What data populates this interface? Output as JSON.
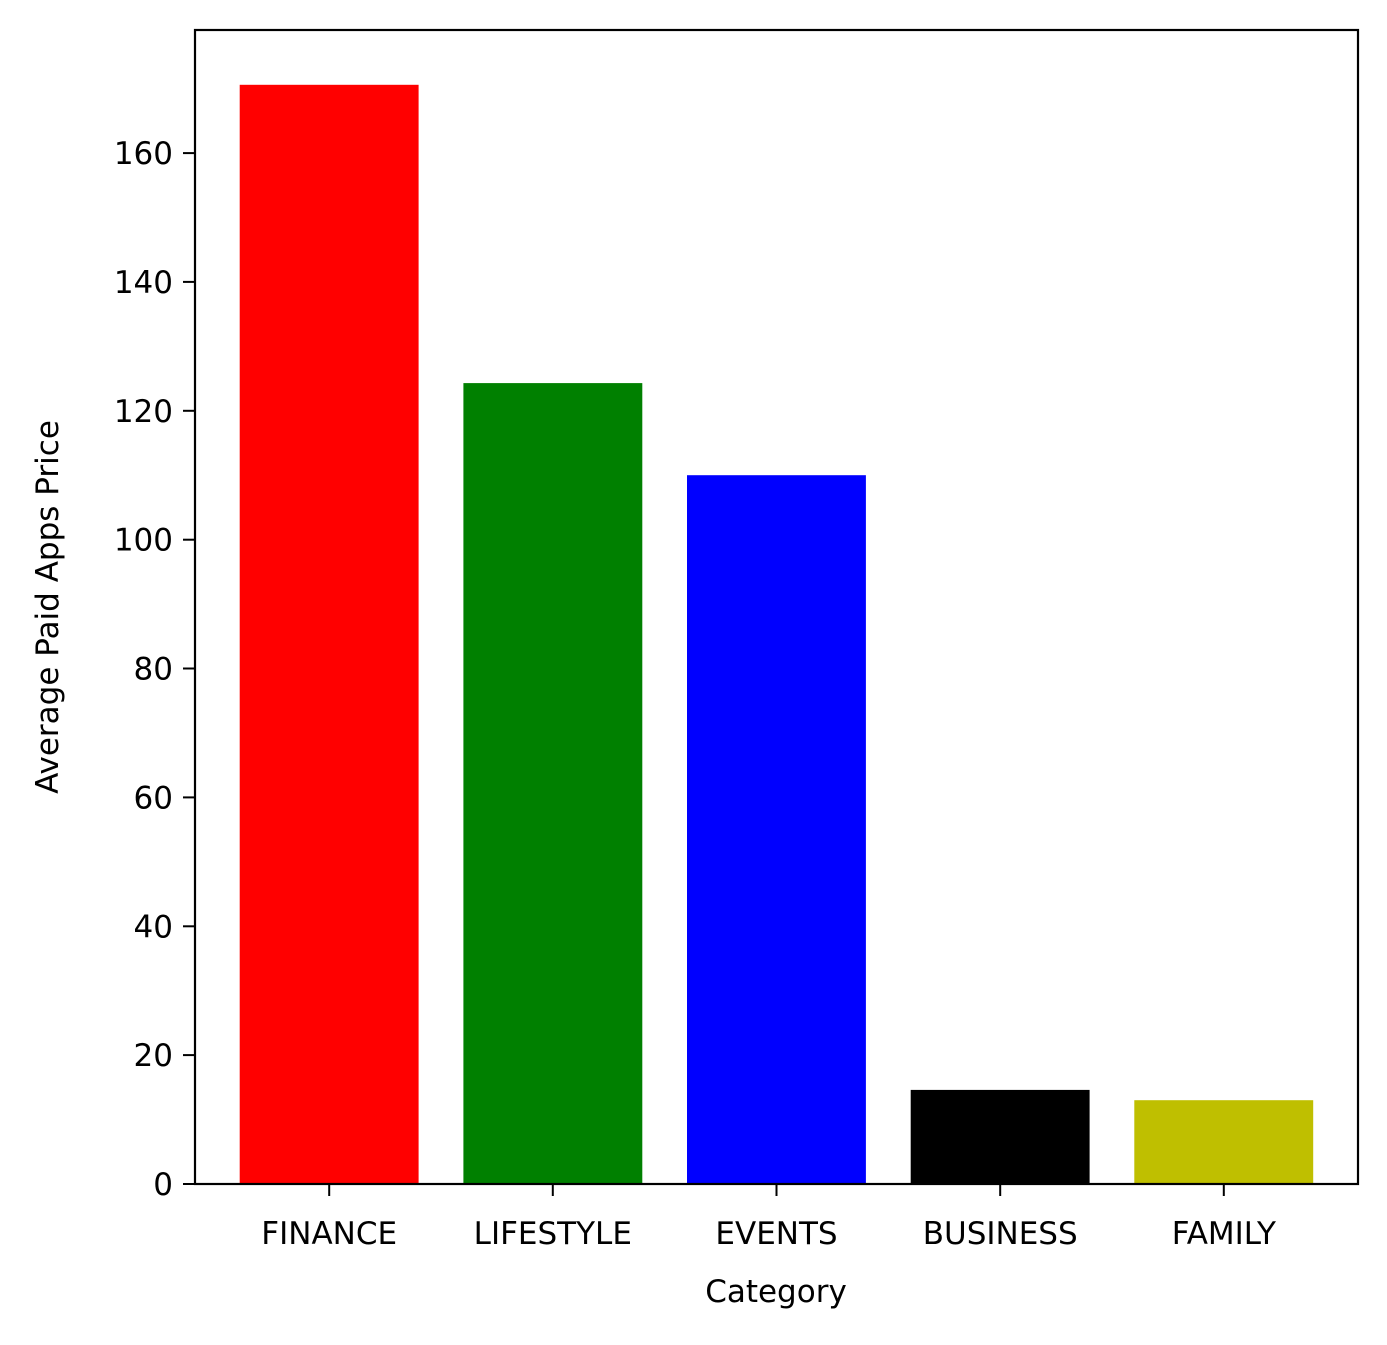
{
  "chart_data": {
    "type": "bar",
    "categories": [
      "FINANCE",
      "LIFESTYLE",
      "EVENTS",
      "BUSINESS",
      "FAMILY"
    ],
    "values": [
      170.6,
      124.3,
      110.0,
      14.6,
      13.0
    ],
    "colors": [
      "#ff0000",
      "#008000",
      "#0000ff",
      "#000000",
      "#bfbf00"
    ],
    "xlabel": "Category",
    "ylabel": "Average Paid Apps Price",
    "ylim": [
      0,
      179.1
    ],
    "yticks": [
      0,
      20,
      40,
      60,
      80,
      100,
      120,
      140,
      160
    ],
    "grid": false
  }
}
